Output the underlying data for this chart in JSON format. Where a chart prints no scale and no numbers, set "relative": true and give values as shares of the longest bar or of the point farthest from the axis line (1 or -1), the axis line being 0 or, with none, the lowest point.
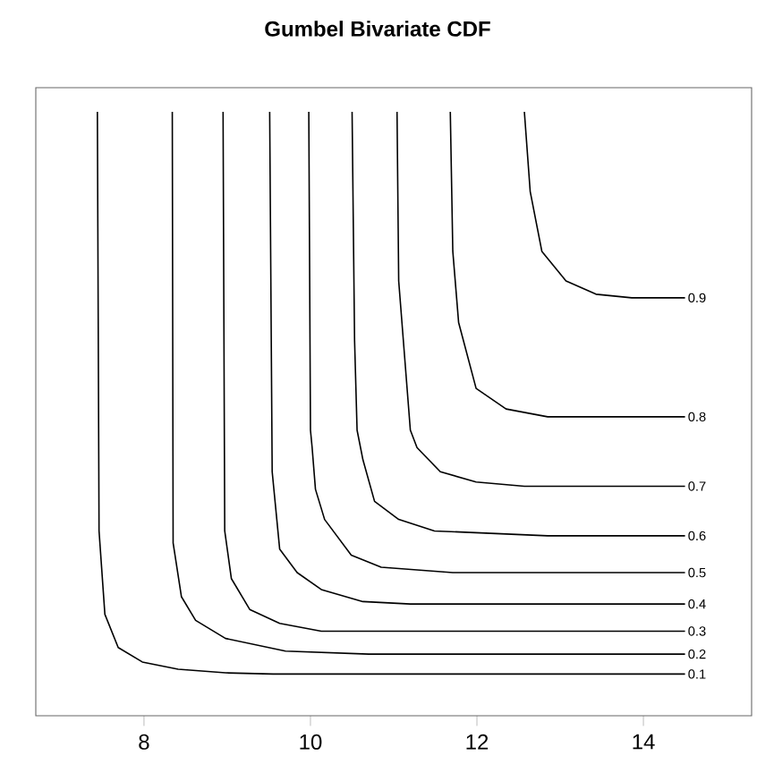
{
  "chart_data": {
    "type": "line",
    "title": "Gumbel Bivariate CDF",
    "relative": true,
    "xlim": [
      6.7,
      15.3
    ],
    "xticks": [
      8,
      10,
      12,
      14
    ],
    "grid": false,
    "marker": "none",
    "line_style": "solid",
    "series": [
      {
        "name": "0.1",
        "color": "#000000",
        "x": [
          7.44,
          7.46,
          7.53,
          7.69,
          7.98,
          8.41,
          8.98,
          9.55,
          14.5
        ],
        "values": [
          1.0,
          0.306,
          0.168,
          0.113,
          0.089,
          0.077,
          0.071,
          0.069,
          0.069
        ]
      },
      {
        "name": "0.2",
        "color": "#000000",
        "x": [
          8.34,
          8.35,
          8.45,
          8.62,
          8.98,
          9.7,
          10.7,
          14.5
        ],
        "values": [
          1.0,
          0.286,
          0.197,
          0.158,
          0.128,
          0.107,
          0.102,
          0.102
        ]
      },
      {
        "name": "0.3",
        "color": "#000000",
        "x": [
          8.95,
          8.97,
          9.05,
          9.27,
          9.63,
          10.13,
          11.56,
          14.5
        ],
        "values": [
          1.0,
          0.306,
          0.227,
          0.176,
          0.153,
          0.14,
          0.14,
          0.14
        ]
      },
      {
        "name": "0.4",
        "color": "#000000",
        "x": [
          9.51,
          9.54,
          9.63,
          9.84,
          10.13,
          10.63,
          11.2,
          14.5
        ],
        "values": [
          1.0,
          0.404,
          0.276,
          0.237,
          0.209,
          0.189,
          0.185,
          0.185
        ]
      },
      {
        "name": "0.5",
        "color": "#000000",
        "x": [
          9.98,
          10.0,
          10.02,
          10.06,
          10.17,
          10.49,
          10.85,
          11.71,
          14.5
        ],
        "values": [
          1.0,
          0.473,
          0.444,
          0.375,
          0.325,
          0.266,
          0.246,
          0.237,
          0.237
        ]
      },
      {
        "name": "0.6",
        "color": "#000000",
        "x": [
          10.5,
          10.53,
          10.56,
          10.63,
          10.77,
          11.06,
          11.49,
          12.85,
          14.5
        ],
        "values": [
          1.0,
          0.621,
          0.473,
          0.424,
          0.355,
          0.325,
          0.306,
          0.298,
          0.298
        ]
      },
      {
        "name": "0.7",
        "color": "#000000",
        "x": [
          11.04,
          11.06,
          11.2,
          11.28,
          11.56,
          11.99,
          12.57,
          14.5
        ],
        "values": [
          1.0,
          0.72,
          0.473,
          0.444,
          0.404,
          0.387,
          0.38,
          0.38
        ]
      },
      {
        "name": "0.8",
        "color": "#000000",
        "x": [
          11.68,
          11.71,
          11.78,
          11.99,
          12.35,
          12.85,
          14.5
        ],
        "values": [
          1.0,
          0.769,
          0.651,
          0.542,
          0.508,
          0.495,
          0.495
        ]
      },
      {
        "name": "0.9",
        "color": "#000000",
        "x": [
          12.57,
          12.64,
          12.78,
          13.07,
          13.43,
          13.86,
          14.5
        ],
        "values": [
          1.0,
          0.868,
          0.769,
          0.72,
          0.698,
          0.692,
          0.692
        ]
      }
    ]
  }
}
